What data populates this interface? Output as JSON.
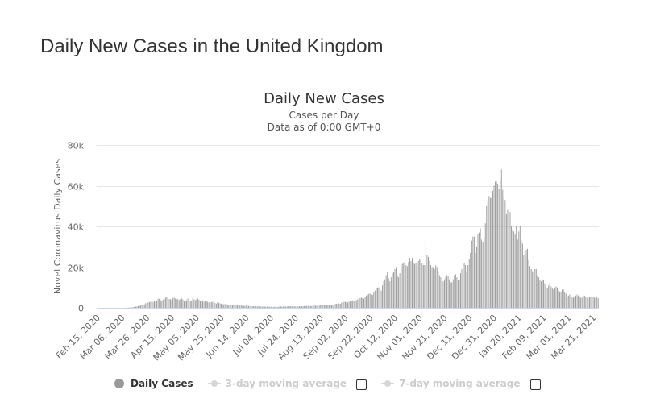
{
  "page_title": "Daily New Cases in the United Kingdom",
  "colors": {
    "bars": "#999999",
    "grid": "#e6e6e6",
    "text": "#333333",
    "inactive": "#cccccc"
  },
  "legend": {
    "series_label": "Daily Cases",
    "ma3_label": "3-day moving average",
    "ma7_label": "7-day moving average"
  },
  "chart_data": {
    "type": "bar",
    "title": "Daily New Cases",
    "subtitle_lines": [
      "Cases per Day",
      "Data as of 0:00 GMT+0"
    ],
    "ylabel": "Novel Coronavirus Daily Cases",
    "xlabel": "",
    "ylim": [
      0,
      80000
    ],
    "y_ticks": [
      0,
      20000,
      40000,
      60000,
      80000
    ],
    "y_tick_labels": [
      "0",
      "20k",
      "40k",
      "60k",
      "80k"
    ],
    "x_tick_labels": [
      "Feb 15, 2020",
      "Mar 06, 2020",
      "Mar 26, 2020",
      "Apr 15, 2020",
      "May 05, 2020",
      "May 25, 2020",
      "Jun 14, 2020",
      "Jul 04, 2020",
      "Jul 24, 2020",
      "Aug 13, 2020",
      "Sep 02, 2020",
      "Sep 22, 2020",
      "Oct 12, 2020",
      "Nov 01, 2020",
      "Nov 21, 2020",
      "Dec 11, 2020",
      "Dec 31, 2020",
      "Jan 20, 2021",
      "Feb 09, 2021",
      "Mar 01, 2021",
      "Mar 21, 2021"
    ],
    "x_tick_every_days": 20,
    "series": [
      {
        "name": "Daily Cases",
        "start_date": "Feb 15, 2020",
        "values": [
          0,
          0,
          0,
          0,
          0,
          0,
          0,
          0,
          0,
          0,
          0,
          0,
          0,
          0,
          0,
          0,
          0,
          0,
          0,
          0,
          10,
          20,
          30,
          50,
          80,
          120,
          150,
          200,
          250,
          350,
          400,
          600,
          700,
          900,
          1000,
          1200,
          1300,
          1500,
          1700,
          2200,
          2400,
          2600,
          2800,
          3000,
          2800,
          2900,
          3300,
          3000,
          3500,
          4500,
          4500,
          3800,
          3200,
          4100,
          4500,
          5000,
          5500,
          4800,
          4300,
          4200,
          4000,
          4800,
          5000,
          4600,
          4200,
          4400,
          3800,
          4300,
          4600,
          4100,
          3600,
          3300,
          3700,
          4600,
          3900,
          3500,
          3600,
          5000,
          4200,
          3800,
          4100,
          4600,
          4000,
          3500,
          3200,
          3300,
          3000,
          3400,
          3100,
          3000,
          2700,
          2500,
          2800,
          3000,
          2600,
          2300,
          2100,
          2700,
          2400,
          2200,
          2000,
          1800,
          1700,
          1900,
          1800,
          1600,
          1500,
          1500,
          1600,
          1400,
          1300,
          1300,
          1400,
          1200,
          1100,
          1100,
          1200,
          1000,
          950,
          1000,
          1100,
          900,
          850,
          900,
          900,
          800,
          750,
          700,
          750,
          700,
          650,
          650,
          700,
          600,
          550,
          550,
          600,
          550,
          500,
          500,
          550,
          500,
          450,
          500,
          550,
          500,
          500,
          600,
          650,
          600,
          550,
          600,
          650,
          700,
          700,
          750,
          800,
          750,
          700,
          650,
          700,
          700,
          750,
          800,
          800,
          750,
          800,
          850,
          850,
          900,
          950,
          900,
          850,
          900,
          1000,
          1100,
          1000,
          1000,
          1100,
          1150,
          1200,
          1300,
          1200,
          1150,
          1300,
          1400,
          1500,
          1600,
          1500,
          1400,
          1500,
          1700,
          1900,
          2000,
          2200,
          2100,
          2000,
          2500,
          2700,
          2900,
          3000,
          2800,
          2600,
          3000,
          3300,
          3500,
          3700,
          3500,
          3300,
          3800,
          4200,
          4500,
          4800,
          5000,
          4800,
          4500,
          5500,
          6000,
          6500,
          6800,
          7000,
          6500,
          6300,
          7500,
          8500,
          9500,
          10000,
          10000,
          9000,
          8500,
          11000,
          13000,
          14000,
          16000,
          17500,
          14500,
          13000,
          15000,
          17000,
          17500,
          19000,
          20000,
          16000,
          15000,
          17000,
          20000,
          21500,
          22000,
          23000,
          21000,
          20500,
          22500,
          24500,
          23000,
          24500,
          22000,
          21500,
          22000,
          20500,
          23000,
          24000,
          23500,
          22000,
          21000,
          21000,
          33500,
          26000,
          25000,
          23000,
          21000,
          20000,
          20000,
          19000,
          21000,
          20000,
          18000,
          16000,
          15000,
          13500,
          13000,
          14000,
          15000,
          16000,
          15500,
          14000,
          12500,
          12500,
          14000,
          16000,
          16500,
          15000,
          13500,
          14000,
          17000,
          19000,
          21000,
          22000,
          21000,
          18000,
          21000,
          24000,
          27000,
          33000,
          35000,
          35000,
          27000,
          30000,
          36000,
          37000,
          39000,
          33500,
          32500,
          34500,
          41500,
          50000,
          53000,
          55000,
          54000,
          54000,
          57500,
          60000,
          62000,
          62000,
          61000,
          58500,
          62500,
          68000,
          58000,
          54500,
          53000,
          46000,
          48000,
          45500,
          47000,
          40000,
          38500,
          37500,
          36000,
          40000,
          33500,
          37500,
          40000,
          33000,
          31500,
          26000,
          24000,
          28500,
          29000,
          23500,
          20500,
          19000,
          18000,
          17500,
          19000,
          19000,
          15500,
          15000,
          13500,
          13000,
          14000,
          13500,
          12000,
          10500,
          9500,
          11000,
          12500,
          10500,
          9500,
          9000,
          10000,
          10500,
          10000,
          8500,
          8000,
          8000,
          9000,
          9000,
          7500,
          7000,
          5500,
          6000,
          6500,
          6000,
          5500,
          5000,
          5500,
          6000,
          6500,
          6000,
          5500,
          5000,
          5000,
          6000,
          6000,
          5500,
          5000,
          5000,
          5500,
          5500,
          5800,
          5400,
          5000,
          4800,
          5600,
          4700
        ]
      }
    ]
  }
}
